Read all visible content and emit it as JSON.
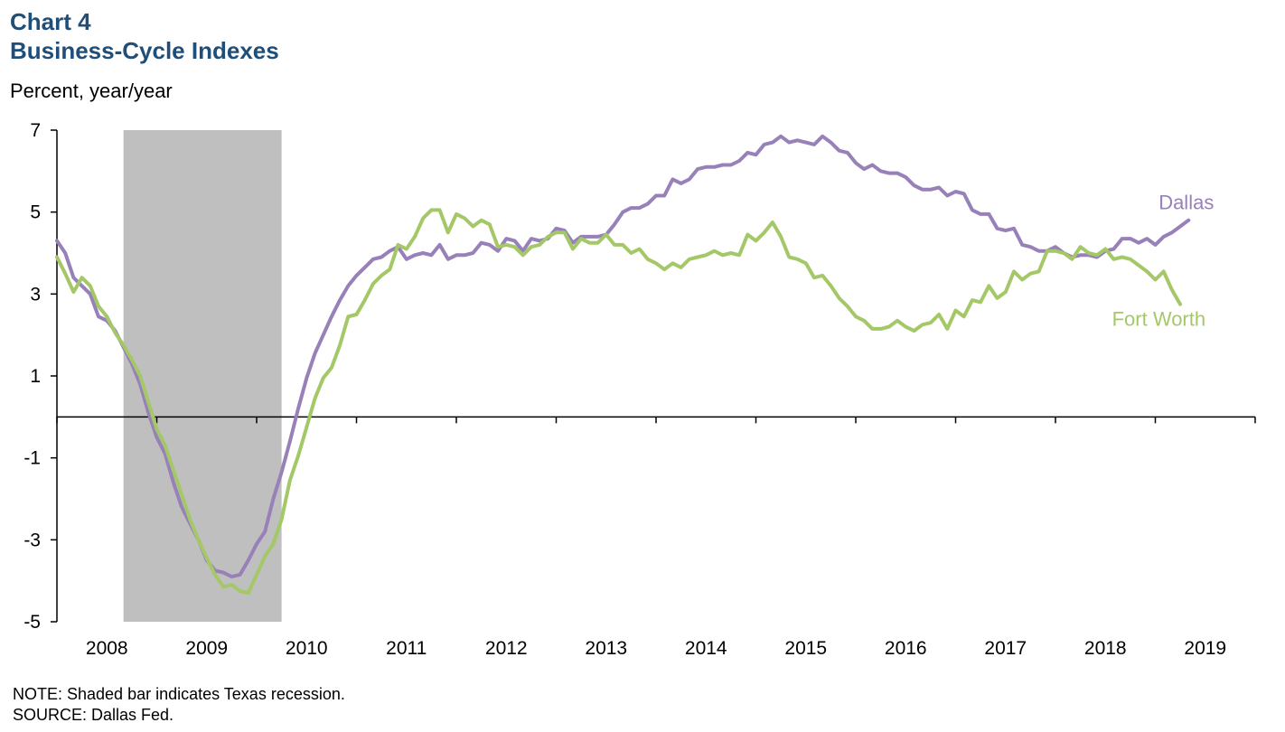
{
  "header": {
    "title_line1": "Chart 4",
    "title_line2": "Business-Cycle Indexes",
    "unit": "Percent, year/year"
  },
  "notes": {
    "note": "NOTE: Shaded bar indicates Texas recession.",
    "source": "SOURCE: Dallas Fed."
  },
  "chart_data": {
    "type": "line",
    "title": "Business-Cycle Indexes",
    "ylabel": "Percent, year/year",
    "ylim": [
      -5,
      7
    ],
    "yticks": [
      7,
      5,
      3,
      1,
      -1,
      -3,
      -5
    ],
    "xlim": [
      "2007-07-01",
      "2019-07-01"
    ],
    "xticks": [
      "2008",
      "2009",
      "2010",
      "2011",
      "2012",
      "2013",
      "2014",
      "2015",
      "2016",
      "2017",
      "2018",
      "2019"
    ],
    "grid": false,
    "recession": {
      "start": "2008-03",
      "end": "2009-10"
    },
    "colors": {
      "Dallas": "#9880b8",
      "Fort Worth": "#a4c867",
      "recession": "#bfbfbf"
    },
    "series": [
      {
        "name": "Dallas",
        "points": [
          [
            "2007-07",
            4.3
          ],
          [
            "2007-08",
            4.0
          ],
          [
            "2007-09",
            3.4
          ],
          [
            "2007-10",
            3.2
          ],
          [
            "2007-11",
            3.0
          ],
          [
            "2007-12",
            2.45
          ],
          [
            "2008-01",
            2.35
          ],
          [
            "2008-02",
            2.1
          ],
          [
            "2008-03",
            1.7
          ],
          [
            "2008-04",
            1.3
          ],
          [
            "2008-05",
            0.8
          ],
          [
            "2008-06",
            0.1
          ],
          [
            "2008-07",
            -0.5
          ],
          [
            "2008-08",
            -0.9
          ],
          [
            "2008-09",
            -1.6
          ],
          [
            "2008-10",
            -2.2
          ],
          [
            "2008-11",
            -2.6
          ],
          [
            "2008-12",
            -3.0
          ],
          [
            "2009-01",
            -3.5
          ],
          [
            "2009-02",
            -3.75
          ],
          [
            "2009-03",
            -3.8
          ],
          [
            "2009-04",
            -3.9
          ],
          [
            "2009-05",
            -3.85
          ],
          [
            "2009-06",
            -3.5
          ],
          [
            "2009-07",
            -3.1
          ],
          [
            "2009-08",
            -2.8
          ],
          [
            "2009-09",
            -2.0
          ],
          [
            "2009-10",
            -1.35
          ],
          [
            "2009-11",
            -0.6
          ],
          [
            "2009-12",
            0.2
          ],
          [
            "2010-01",
            0.95
          ],
          [
            "2010-02",
            1.55
          ],
          [
            "2010-03",
            2.0
          ],
          [
            "2010-04",
            2.45
          ],
          [
            "2010-05",
            2.85
          ],
          [
            "2010-06",
            3.2
          ],
          [
            "2010-07",
            3.45
          ],
          [
            "2010-08",
            3.65
          ],
          [
            "2010-09",
            3.85
          ],
          [
            "2010-10",
            3.9
          ],
          [
            "2010-11",
            4.05
          ],
          [
            "2010-12",
            4.15
          ],
          [
            "2011-01",
            3.85
          ],
          [
            "2011-02",
            3.95
          ],
          [
            "2011-03",
            4.0
          ],
          [
            "2011-04",
            3.95
          ],
          [
            "2011-05",
            4.2
          ],
          [
            "2011-06",
            3.85
          ],
          [
            "2011-07",
            3.95
          ],
          [
            "2011-08",
            3.95
          ],
          [
            "2011-09",
            4.0
          ],
          [
            "2011-10",
            4.25
          ],
          [
            "2011-11",
            4.2
          ],
          [
            "2011-12",
            4.05
          ],
          [
            "2012-01",
            4.35
          ],
          [
            "2012-02",
            4.3
          ],
          [
            "2012-03",
            4.05
          ],
          [
            "2012-04",
            4.35
          ],
          [
            "2012-05",
            4.3
          ],
          [
            "2012-06",
            4.35
          ],
          [
            "2012-07",
            4.6
          ],
          [
            "2012-08",
            4.55
          ],
          [
            "2012-09",
            4.25
          ],
          [
            "2012-10",
            4.4
          ],
          [
            "2012-11",
            4.4
          ],
          [
            "2012-12",
            4.4
          ],
          [
            "2013-01",
            4.45
          ],
          [
            "2013-02",
            4.7
          ],
          [
            "2013-03",
            5.0
          ],
          [
            "2013-04",
            5.1
          ],
          [
            "2013-05",
            5.1
          ],
          [
            "2013-06",
            5.2
          ],
          [
            "2013-07",
            5.4
          ],
          [
            "2013-08",
            5.4
          ],
          [
            "2013-09",
            5.8
          ],
          [
            "2013-10",
            5.7
          ],
          [
            "2013-11",
            5.8
          ],
          [
            "2013-12",
            6.05
          ],
          [
            "2014-01",
            6.1
          ],
          [
            "2014-02",
            6.1
          ],
          [
            "2014-03",
            6.15
          ],
          [
            "2014-04",
            6.15
          ],
          [
            "2014-05",
            6.25
          ],
          [
            "2014-06",
            6.45
          ],
          [
            "2014-07",
            6.4
          ],
          [
            "2014-08",
            6.65
          ],
          [
            "2014-09",
            6.7
          ],
          [
            "2014-10",
            6.85
          ],
          [
            "2014-11",
            6.7
          ],
          [
            "2014-12",
            6.75
          ],
          [
            "2015-01",
            6.7
          ],
          [
            "2015-02",
            6.65
          ],
          [
            "2015-03",
            6.85
          ],
          [
            "2015-04",
            6.7
          ],
          [
            "2015-05",
            6.5
          ],
          [
            "2015-06",
            6.45
          ],
          [
            "2015-07",
            6.2
          ],
          [
            "2015-08",
            6.05
          ],
          [
            "2015-09",
            6.15
          ],
          [
            "2015-10",
            6.0
          ],
          [
            "2015-11",
            5.95
          ],
          [
            "2015-12",
            5.95
          ],
          [
            "2016-01",
            5.85
          ],
          [
            "2016-02",
            5.65
          ],
          [
            "2016-03",
            5.55
          ],
          [
            "2016-04",
            5.55
          ],
          [
            "2016-05",
            5.6
          ],
          [
            "2016-06",
            5.4
          ],
          [
            "2016-07",
            5.5
          ],
          [
            "2016-08",
            5.45
          ],
          [
            "2016-09",
            5.05
          ],
          [
            "2016-10",
            4.95
          ],
          [
            "2016-11",
            4.95
          ],
          [
            "2016-12",
            4.6
          ],
          [
            "2017-01",
            4.55
          ],
          [
            "2017-02",
            4.6
          ],
          [
            "2017-03",
            4.2
          ],
          [
            "2017-04",
            4.15
          ],
          [
            "2017-05",
            4.05
          ],
          [
            "2017-06",
            4.05
          ],
          [
            "2017-07",
            4.15
          ],
          [
            "2017-08",
            4.0
          ],
          [
            "2017-09",
            3.9
          ],
          [
            "2017-10",
            3.95
          ],
          [
            "2017-11",
            3.95
          ],
          [
            "2017-12",
            3.9
          ],
          [
            "2018-01",
            4.05
          ],
          [
            "2018-02",
            4.1
          ],
          [
            "2018-03",
            4.35
          ],
          [
            "2018-04",
            4.35
          ],
          [
            "2018-05",
            4.25
          ],
          [
            "2018-06",
            4.35
          ],
          [
            "2018-07",
            4.2
          ],
          [
            "2018-08",
            4.4
          ],
          [
            "2018-09",
            4.5
          ],
          [
            "2018-10",
            4.65
          ],
          [
            "2018-11",
            4.8
          ]
        ]
      },
      {
        "name": "Fort Worth",
        "points": [
          [
            "2007-07",
            3.9
          ],
          [
            "2007-08",
            3.5
          ],
          [
            "2007-09",
            3.05
          ],
          [
            "2007-10",
            3.4
          ],
          [
            "2007-11",
            3.2
          ],
          [
            "2007-12",
            2.7
          ],
          [
            "2008-01",
            2.45
          ],
          [
            "2008-02",
            2.05
          ],
          [
            "2008-03",
            1.75
          ],
          [
            "2008-04",
            1.4
          ],
          [
            "2008-05",
            1.0
          ],
          [
            "2008-06",
            0.35
          ],
          [
            "2008-07",
            -0.3
          ],
          [
            "2008-08",
            -0.7
          ],
          [
            "2008-09",
            -1.3
          ],
          [
            "2008-10",
            -1.9
          ],
          [
            "2008-11",
            -2.5
          ],
          [
            "2008-12",
            -3.0
          ],
          [
            "2009-01",
            -3.45
          ],
          [
            "2009-02",
            -3.85
          ],
          [
            "2009-03",
            -4.15
          ],
          [
            "2009-04",
            -4.1
          ],
          [
            "2009-05",
            -4.25
          ],
          [
            "2009-06",
            -4.3
          ],
          [
            "2009-07",
            -3.85
          ],
          [
            "2009-08",
            -3.4
          ],
          [
            "2009-09",
            -3.1
          ],
          [
            "2009-10",
            -2.5
          ],
          [
            "2009-11",
            -1.55
          ],
          [
            "2009-12",
            -0.95
          ],
          [
            "2010-01",
            -0.25
          ],
          [
            "2010-02",
            0.45
          ],
          [
            "2010-03",
            0.95
          ],
          [
            "2010-04",
            1.2
          ],
          [
            "2010-05",
            1.75
          ],
          [
            "2010-06",
            2.45
          ],
          [
            "2010-07",
            2.5
          ],
          [
            "2010-08",
            2.85
          ],
          [
            "2010-09",
            3.25
          ],
          [
            "2010-10",
            3.45
          ],
          [
            "2010-11",
            3.6
          ],
          [
            "2010-12",
            4.2
          ],
          [
            "2011-01",
            4.1
          ],
          [
            "2011-02",
            4.4
          ],
          [
            "2011-03",
            4.85
          ],
          [
            "2011-04",
            5.05
          ],
          [
            "2011-05",
            5.05
          ],
          [
            "2011-06",
            4.5
          ],
          [
            "2011-07",
            4.95
          ],
          [
            "2011-08",
            4.85
          ],
          [
            "2011-09",
            4.65
          ],
          [
            "2011-10",
            4.8
          ],
          [
            "2011-11",
            4.7
          ],
          [
            "2011-12",
            4.15
          ],
          [
            "2012-01",
            4.2
          ],
          [
            "2012-02",
            4.15
          ],
          [
            "2012-03",
            3.95
          ],
          [
            "2012-04",
            4.15
          ],
          [
            "2012-05",
            4.2
          ],
          [
            "2012-06",
            4.4
          ],
          [
            "2012-07",
            4.5
          ],
          [
            "2012-08",
            4.5
          ],
          [
            "2012-09",
            4.1
          ],
          [
            "2012-10",
            4.35
          ],
          [
            "2012-11",
            4.25
          ],
          [
            "2012-12",
            4.25
          ],
          [
            "2013-01",
            4.45
          ],
          [
            "2013-02",
            4.2
          ],
          [
            "2013-03",
            4.2
          ],
          [
            "2013-04",
            4.0
          ],
          [
            "2013-05",
            4.1
          ],
          [
            "2013-06",
            3.85
          ],
          [
            "2013-07",
            3.75
          ],
          [
            "2013-08",
            3.6
          ],
          [
            "2013-09",
            3.75
          ],
          [
            "2013-10",
            3.65
          ],
          [
            "2013-11",
            3.85
          ],
          [
            "2013-12",
            3.9
          ],
          [
            "2014-01",
            3.95
          ],
          [
            "2014-02",
            4.05
          ],
          [
            "2014-03",
            3.95
          ],
          [
            "2014-04",
            4.0
          ],
          [
            "2014-05",
            3.95
          ],
          [
            "2014-06",
            4.45
          ],
          [
            "2014-07",
            4.3
          ],
          [
            "2014-08",
            4.5
          ],
          [
            "2014-09",
            4.75
          ],
          [
            "2014-10",
            4.4
          ],
          [
            "2014-11",
            3.9
          ],
          [
            "2014-12",
            3.85
          ],
          [
            "2015-01",
            3.75
          ],
          [
            "2015-02",
            3.4
          ],
          [
            "2015-03",
            3.45
          ],
          [
            "2015-04",
            3.2
          ],
          [
            "2015-05",
            2.9
          ],
          [
            "2015-06",
            2.7
          ],
          [
            "2015-07",
            2.45
          ],
          [
            "2015-08",
            2.35
          ],
          [
            "2015-09",
            2.15
          ],
          [
            "2015-10",
            2.15
          ],
          [
            "2015-11",
            2.2
          ],
          [
            "2015-12",
            2.35
          ],
          [
            "2016-01",
            2.2
          ],
          [
            "2016-02",
            2.1
          ],
          [
            "2016-03",
            2.25
          ],
          [
            "2016-04",
            2.3
          ],
          [
            "2016-05",
            2.5
          ],
          [
            "2016-06",
            2.15
          ],
          [
            "2016-07",
            2.6
          ],
          [
            "2016-08",
            2.45
          ],
          [
            "2016-09",
            2.85
          ],
          [
            "2016-10",
            2.8
          ],
          [
            "2016-11",
            3.2
          ],
          [
            "2016-12",
            2.9
          ],
          [
            "2017-01",
            3.05
          ],
          [
            "2017-02",
            3.55
          ],
          [
            "2017-03",
            3.35
          ],
          [
            "2017-04",
            3.5
          ],
          [
            "2017-05",
            3.55
          ],
          [
            "2017-06",
            4.05
          ],
          [
            "2017-07",
            4.05
          ],
          [
            "2017-08",
            4.0
          ],
          [
            "2017-09",
            3.85
          ],
          [
            "2017-10",
            4.15
          ],
          [
            "2017-11",
            4.0
          ],
          [
            "2017-12",
            3.95
          ],
          [
            "2018-01",
            4.1
          ],
          [
            "2018-02",
            3.85
          ],
          [
            "2018-03",
            3.9
          ],
          [
            "2018-04",
            3.85
          ],
          [
            "2018-05",
            3.7
          ],
          [
            "2018-06",
            3.55
          ],
          [
            "2018-07",
            3.35
          ],
          [
            "2018-08",
            3.55
          ],
          [
            "2018-09",
            3.1
          ],
          [
            "2018-10",
            2.75
          ]
        ]
      }
    ]
  }
}
